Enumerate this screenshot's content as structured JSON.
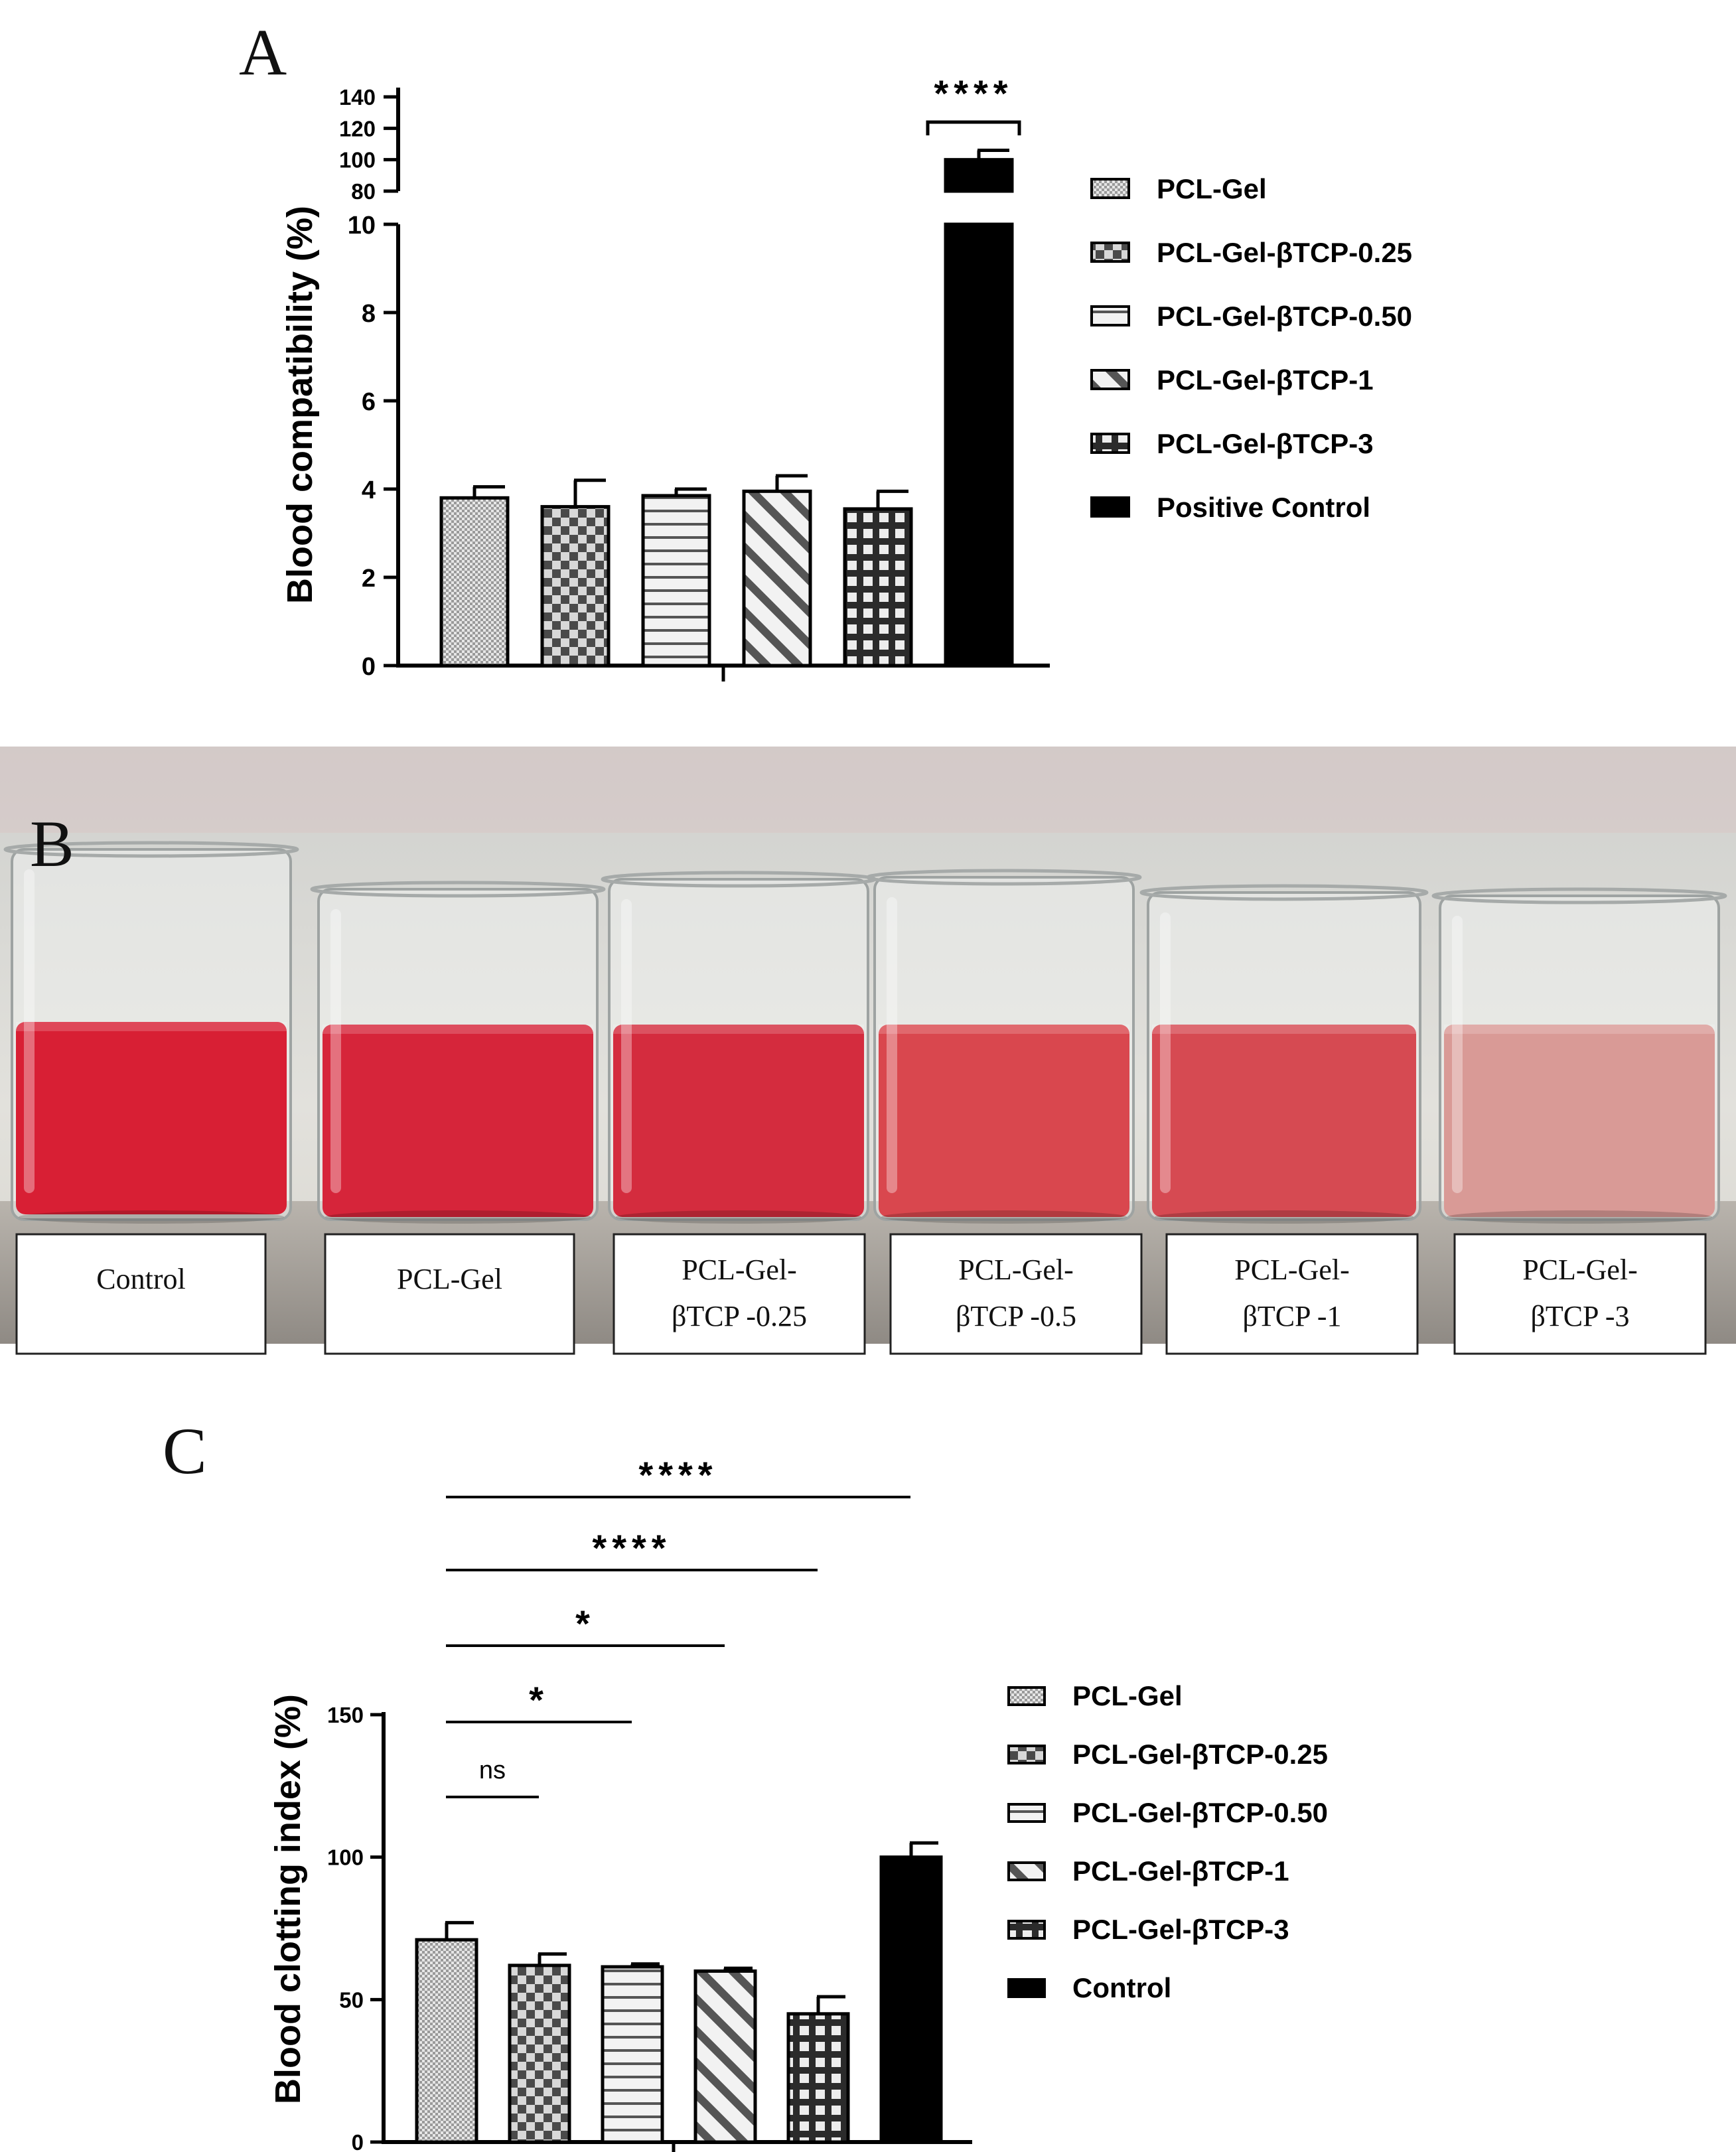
{
  "chart_data": [
    {
      "panel": "A",
      "type": "bar",
      "ylabel": "Blood compatibility (%)",
      "ylim_lower": [
        0,
        10
      ],
      "ylim_upper": [
        80,
        140
      ],
      "y_ticks_lower": [
        "0",
        "2",
        "4",
        "6",
        "8",
        "10"
      ],
      "y_ticks_upper": [
        "80",
        "100",
        "120",
        "140"
      ],
      "categories": [
        "PCL-Gel",
        "PCL-Gel-βTCP-0.25",
        "PCL-Gel-βTCP-0.50",
        "PCL-Gel-βTCP-1",
        "PCL-Gel-βTCP-3",
        "Positive Control"
      ],
      "values": [
        3.8,
        3.6,
        3.85,
        3.95,
        3.55,
        100
      ],
      "errors": [
        0.25,
        0.6,
        0.15,
        0.35,
        0.4,
        6
      ],
      "patterns": [
        "fine",
        "checker",
        "hstripe",
        "diag",
        "grid",
        "solid"
      ],
      "legend": [
        "PCL-Gel",
        "PCL-Gel-βTCP-0.25",
        "PCL-Gel-βTCP-0.50",
        "PCL-Gel-βTCP-1",
        "PCL-Gel-βTCP-3",
        "Positive Control"
      ],
      "significance": "****"
    },
    {
      "panel": "C",
      "type": "bar",
      "ylabel": "Blood clotting index (%)",
      "ylim": [
        0,
        150
      ],
      "y_ticks": [
        "0",
        "50",
        "100",
        "150"
      ],
      "categories": [
        "PCL-Gel",
        "PCL-Gel-βTCP-0.25",
        "PCL-Gel-βTCP-0.50",
        "PCL-Gel-βTCP-1",
        "PCL-Gel-βTCP-3",
        "Control"
      ],
      "values": [
        71,
        62,
        61.5,
        60,
        45,
        100
      ],
      "errors": [
        6,
        4,
        1,
        1,
        6,
        5
      ],
      "patterns": [
        "fine",
        "checker",
        "hstripe",
        "diag",
        "grid",
        "solid"
      ],
      "legend": [
        "PCL-Gel",
        "PCL-Gel-βTCP-0.25",
        "PCL-Gel-βTCP-0.50",
        "PCL-Gel-βTCP-1",
        "PCL-Gel-βTCP-3",
        "Control"
      ],
      "comparisons": [
        {
          "label": "ns",
          "from": "PCL-Gel",
          "to": "PCL-Gel-βTCP-0.25"
        },
        {
          "label": "*",
          "from": "PCL-Gel",
          "to": "PCL-Gel-βTCP-0.50"
        },
        {
          "label": "*",
          "from": "PCL-Gel",
          "to": "PCL-Gel-βTCP-1"
        },
        {
          "label": "****",
          "from": "PCL-Gel",
          "to": "PCL-Gel-βTCP-3"
        },
        {
          "label": "****",
          "from": "PCL-Gel",
          "to": "Control"
        }
      ]
    }
  ],
  "panels": {
    "a": "A",
    "b": "B",
    "c": "C"
  },
  "photo": {
    "labels": [
      [
        "Control"
      ],
      [
        "PCL-Gel"
      ],
      [
        "PCL-Gel-",
        "βTCP -0.25"
      ],
      [
        "PCL-Gel-",
        "βTCP -0.5"
      ],
      [
        "PCL-Gel-",
        "βTCP -1"
      ],
      [
        "PCL-Gel-",
        "βTCP -3"
      ]
    ],
    "liquid_colors": [
      "#d81f34",
      "#d6253a",
      "#d42c3e",
      "#d9474e",
      "#d64a52",
      "#d99a96"
    ]
  }
}
